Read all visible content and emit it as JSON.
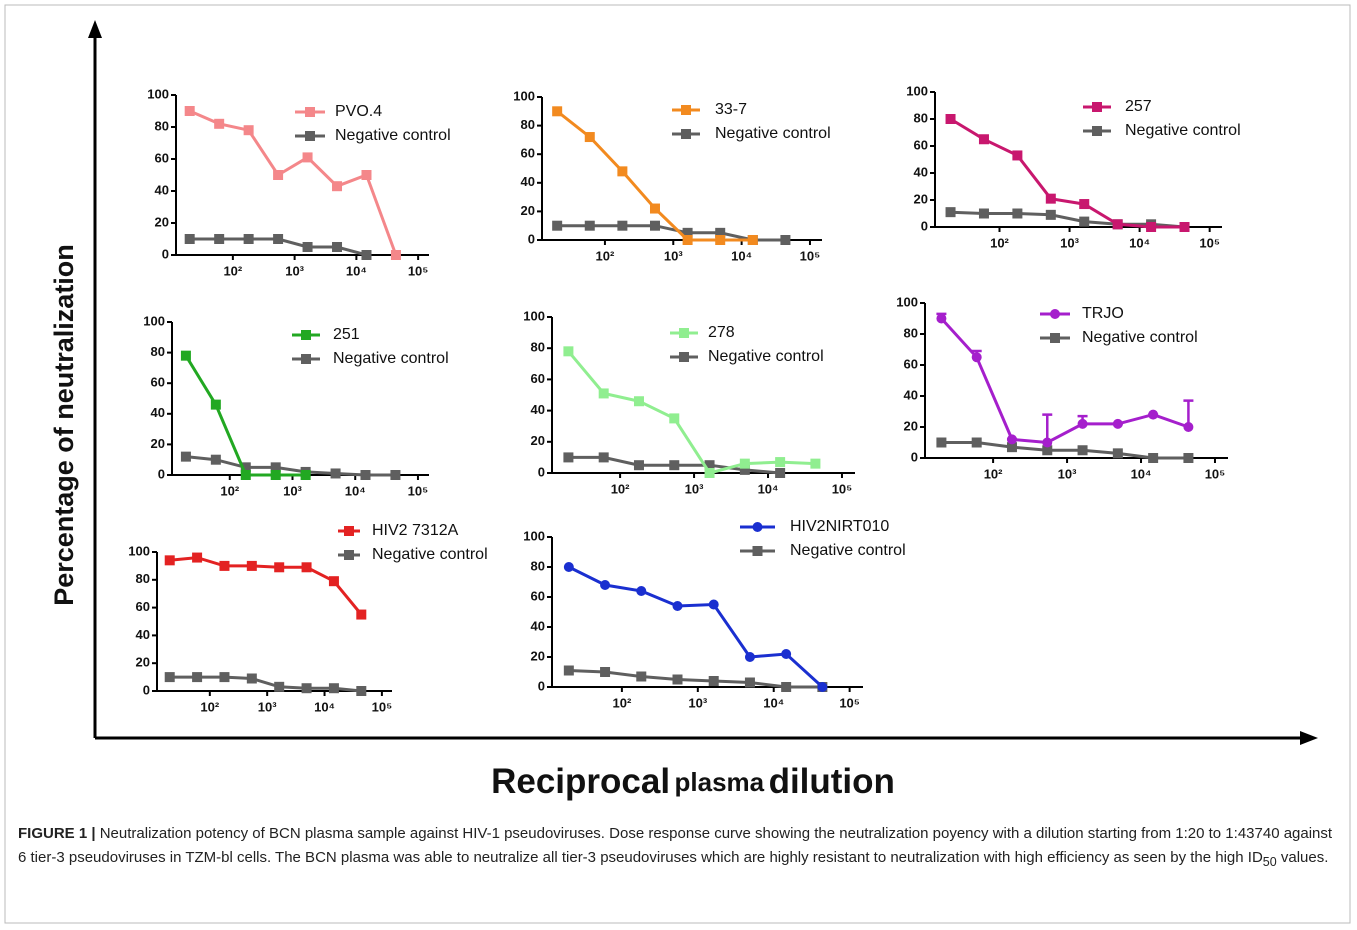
{
  "figure": {
    "y_label": "Percentage of neutralization",
    "x_label": [
      "Reciprocal",
      "plasma",
      "dilution"
    ],
    "caption": {
      "label": "FIGURE 1 |",
      "text": "Neutralization potency of BCN plasma sample against HIV-1 pseudoviruses. Dose response curve showing the neutralization poyency with a dilution starting from 1:20 to 1:43740 against 6 tier-3 pseudoviruses in TZM-bl cells. The BCN plasma was able to neutralize all tier-3 pseudoviruses which are highly resistant to neutralization with high efficiency as seen by the high ID",
      "sub": "50",
      "tail": "values."
    }
  },
  "chart_data": [
    {
      "type": "line",
      "log_x": true,
      "x": [
        20,
        60,
        180,
        540,
        1620,
        4860,
        14580,
        43740
      ],
      "xlim": [
        12,
        150000
      ],
      "xticks": [
        {
          "value": 100,
          "label": "10²"
        },
        {
          "value": 1000,
          "label": "10³"
        },
        {
          "value": 10000,
          "label": "10⁴"
        },
        {
          "value": 100000,
          "label": "10⁵"
        }
      ],
      "ylim": [
        0,
        100
      ],
      "yticks": [
        0,
        20,
        40,
        60,
        80,
        100
      ],
      "series": [
        {
          "name": "PVO.4",
          "color": "#f4878a",
          "marker": "square",
          "values": [
            90,
            82,
            78,
            50,
            61,
            43,
            50,
            0
          ]
        },
        {
          "name": "Negative control",
          "color": "#5f5f5f",
          "marker": "square",
          "values": [
            10,
            10,
            10,
            10,
            5,
            5,
            0,
            null
          ]
        }
      ]
    },
    {
      "type": "line",
      "log_x": true,
      "x": [
        20,
        60,
        180,
        540,
        1620,
        4860,
        14580,
        43740
      ],
      "xlim": [
        12,
        150000
      ],
      "xticks": [
        {
          "value": 100,
          "label": "10²"
        },
        {
          "value": 1000,
          "label": "10³"
        },
        {
          "value": 10000,
          "label": "10⁴"
        },
        {
          "value": 100000,
          "label": "10⁵"
        }
      ],
      "ylim": [
        0,
        100
      ],
      "yticks": [
        0,
        20,
        40,
        60,
        80,
        100
      ],
      "series": [
        {
          "name": "33-7",
          "color": "#f28a1f",
          "marker": "square",
          "values": [
            90,
            72,
            48,
            22,
            0,
            0,
            0,
            null
          ]
        },
        {
          "name": "Negative control",
          "color": "#5f5f5f",
          "marker": "square",
          "values": [
            10,
            10,
            10,
            10,
            5,
            5,
            0,
            0
          ]
        }
      ]
    },
    {
      "type": "line",
      "log_x": true,
      "x": [
        20,
        60,
        180,
        540,
        1620,
        4860,
        14580,
        43740
      ],
      "xlim": [
        12,
        150000
      ],
      "xticks": [
        {
          "value": 100,
          "label": "10²"
        },
        {
          "value": 1000,
          "label": "10³"
        },
        {
          "value": 10000,
          "label": "10⁴"
        },
        {
          "value": 100000,
          "label": "10⁵"
        }
      ],
      "ylim": [
        0,
        100
      ],
      "yticks": [
        0,
        20,
        40,
        60,
        80,
        100
      ],
      "series": [
        {
          "name": "257",
          "color": "#c8176e",
          "marker": "square",
          "values": [
            80,
            65,
            53,
            21,
            17,
            2,
            0,
            0
          ]
        },
        {
          "name": "Negative control",
          "color": "#5f5f5f",
          "marker": "square",
          "values": [
            11,
            10,
            10,
            9,
            4,
            2,
            2,
            0
          ]
        }
      ]
    },
    {
      "type": "line",
      "log_x": true,
      "x": [
        20,
        60,
        180,
        540,
        1620,
        4860,
        14580,
        43740
      ],
      "xlim": [
        12,
        150000
      ],
      "xticks": [
        {
          "value": 100,
          "label": "10²"
        },
        {
          "value": 1000,
          "label": "10³"
        },
        {
          "value": 10000,
          "label": "10⁴"
        },
        {
          "value": 100000,
          "label": "10⁵"
        }
      ],
      "ylim": [
        0,
        100
      ],
      "yticks": [
        0,
        20,
        40,
        60,
        80,
        100
      ],
      "series": [
        {
          "name": "251",
          "color": "#22a822",
          "marker": "square",
          "values": [
            78,
            46,
            0,
            0,
            0,
            null,
            null,
            null
          ]
        },
        {
          "name": "Negative control",
          "color": "#5f5f5f",
          "marker": "square",
          "values": [
            12,
            10,
            5,
            5,
            2,
            1,
            0,
            0
          ]
        }
      ]
    },
    {
      "type": "line",
      "log_x": true,
      "x": [
        20,
        60,
        180,
        540,
        1620,
        4860,
        14580,
        43740
      ],
      "xlim": [
        12,
        150000
      ],
      "xticks": [
        {
          "value": 100,
          "label": "10²"
        },
        {
          "value": 1000,
          "label": "10³"
        },
        {
          "value": 10000,
          "label": "10⁴"
        },
        {
          "value": 100000,
          "label": "10⁵"
        }
      ],
      "ylim": [
        0,
        100
      ],
      "yticks": [
        0,
        20,
        40,
        60,
        80,
        100
      ],
      "series": [
        {
          "name": "278",
          "color": "#90ee90",
          "marker": "square",
          "values": [
            78,
            51,
            46,
            35,
            0,
            6,
            7,
            6
          ]
        },
        {
          "name": "Negative control",
          "color": "#5f5f5f",
          "marker": "square",
          "values": [
            10,
            10,
            5,
            5,
            5,
            2,
            0,
            null
          ]
        }
      ]
    },
    {
      "type": "line",
      "log_x": true,
      "x": [
        20,
        60,
        180,
        540,
        1620,
        4860,
        14580,
        43740
      ],
      "xlim": [
        12,
        150000
      ],
      "xticks": [
        {
          "value": 100,
          "label": "10²"
        },
        {
          "value": 1000,
          "label": "10³"
        },
        {
          "value": 10000,
          "label": "10⁴"
        },
        {
          "value": 100000,
          "label": "10⁵"
        }
      ],
      "ylim": [
        0,
        100
      ],
      "yticks": [
        0,
        20,
        40,
        60,
        80,
        100
      ],
      "series": [
        {
          "name": "TRJO",
          "color": "#a51fcc",
          "marker": "circle",
          "values": [
            90,
            65,
            12,
            10,
            22,
            22,
            28,
            20
          ],
          "errors": [
            3,
            4,
            0,
            18,
            5,
            0,
            0,
            17
          ]
        },
        {
          "name": "Negative control",
          "color": "#5f5f5f",
          "marker": "square",
          "values": [
            10,
            10,
            7,
            5,
            5,
            3,
            0,
            0
          ]
        }
      ]
    },
    {
      "type": "line",
      "log_x": true,
      "x": [
        20,
        60,
        180,
        540,
        1620,
        4860,
        14580,
        43740
      ],
      "xlim": [
        12,
        150000
      ],
      "xticks": [
        {
          "value": 100,
          "label": "10²"
        },
        {
          "value": 1000,
          "label": "10³"
        },
        {
          "value": 10000,
          "label": "10⁴"
        },
        {
          "value": 100000,
          "label": "10⁵"
        }
      ],
      "ylim": [
        0,
        100
      ],
      "yticks": [
        0,
        20,
        40,
        60,
        80,
        100
      ],
      "series": [
        {
          "name": "HIV2 7312A",
          "color": "#e32222",
          "marker": "square",
          "values": [
            94,
            96,
            90,
            90,
            89,
            89,
            79,
            55
          ]
        },
        {
          "name": "Negative control",
          "color": "#5f5f5f",
          "marker": "square",
          "values": [
            10,
            10,
            10,
            9,
            3,
            2,
            2,
            0
          ]
        }
      ]
    },
    {
      "type": "line",
      "log_x": true,
      "x": [
        20,
        60,
        180,
        540,
        1620,
        4860,
        14580,
        43740
      ],
      "xlim": [
        12,
        150000
      ],
      "xticks": [
        {
          "value": 100,
          "label": "10²"
        },
        {
          "value": 1000,
          "label": "10³"
        },
        {
          "value": 10000,
          "label": "10⁴"
        },
        {
          "value": 100000,
          "label": "10⁵"
        }
      ],
      "ylim": [
        0,
        100
      ],
      "yticks": [
        0,
        20,
        40,
        60,
        80,
        100
      ],
      "series": [
        {
          "name": "HIV2NIRT010",
          "color": "#1a2fd0",
          "marker": "circle",
          "values": [
            80,
            68,
            64,
            54,
            55,
            20,
            22,
            0
          ]
        },
        {
          "name": "Negative control",
          "color": "#5f5f5f",
          "marker": "square",
          "values": [
            11,
            10,
            7,
            5,
            4,
            3,
            0,
            0
          ]
        }
      ]
    }
  ]
}
